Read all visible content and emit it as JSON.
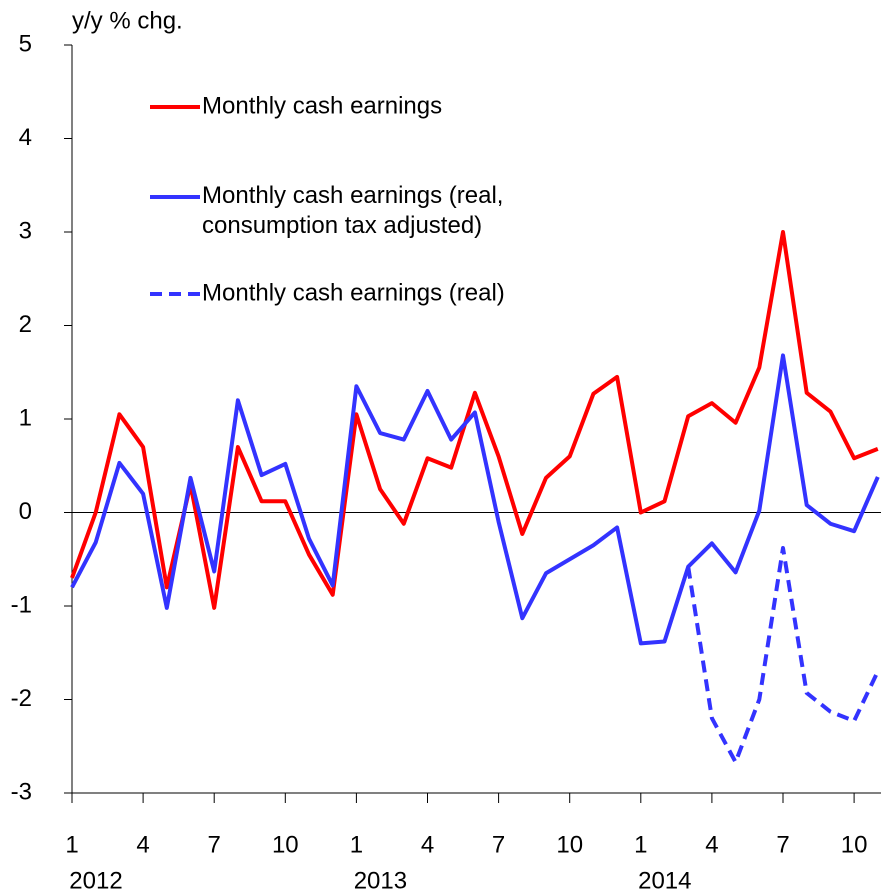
{
  "chart_data": {
    "type": "line",
    "y_axis_label": "y/y % chg.",
    "categories": [
      "1",
      null,
      null,
      "4",
      null,
      null,
      "7",
      null,
      null,
      "10",
      null,
      null,
      "1",
      null,
      null,
      "4",
      null,
      null,
      "7",
      null,
      null,
      "10",
      null,
      null,
      "1",
      null,
      null,
      "4",
      null,
      null,
      "7",
      null,
      null,
      "10",
      null
    ],
    "years": [
      "2012",
      "2013",
      "2014"
    ],
    "ylim": [
      -3,
      5
    ],
    "yticks": [
      -3,
      -2,
      -1,
      0,
      1,
      2,
      3,
      4,
      5
    ],
    "series": [
      {
        "name": "Monthly cash earnings",
        "color": "#ff0000",
        "dash": false,
        "values": [
          -0.7,
          0.0,
          1.05,
          0.7,
          -0.8,
          0.3,
          -1.02,
          0.7,
          0.12,
          0.12,
          -0.45,
          -0.88,
          1.05,
          0.25,
          -0.12,
          0.58,
          0.48,
          1.28,
          0.6,
          -0.23,
          0.37,
          0.6,
          1.27,
          1.45,
          0.0,
          0.12,
          1.03,
          1.17,
          0.96,
          1.55,
          3.0,
          1.28,
          1.08,
          0.58,
          0.68
        ]
      },
      {
        "name": "Monthly cash earnings (real,\nconsumption tax adjusted)",
        "color": "#3333ff",
        "dash": false,
        "values": [
          -0.8,
          -0.32,
          0.53,
          0.2,
          -1.02,
          0.37,
          -0.63,
          1.2,
          0.4,
          0.52,
          -0.28,
          -0.78,
          1.35,
          0.85,
          0.78,
          1.3,
          0.78,
          1.07,
          -0.1,
          -1.13,
          -0.65,
          -0.5,
          -0.35,
          -0.16,
          -1.4,
          -1.38,
          -0.58,
          -0.33,
          -0.64,
          0.02,
          1.68,
          0.08,
          -0.12,
          -0.2,
          0.38
        ]
      },
      {
        "name": "Monthly cash earnings (real)",
        "color": "#3333ff",
        "dash": true,
        "values": [
          null,
          null,
          null,
          null,
          null,
          null,
          null,
          null,
          null,
          null,
          null,
          null,
          null,
          null,
          null,
          null,
          null,
          null,
          null,
          null,
          null,
          null,
          null,
          null,
          null,
          null,
          -0.58,
          -2.2,
          -2.67,
          -2.0,
          -0.38,
          -1.93,
          -2.13,
          -2.23,
          -1.7
        ]
      }
    ]
  }
}
